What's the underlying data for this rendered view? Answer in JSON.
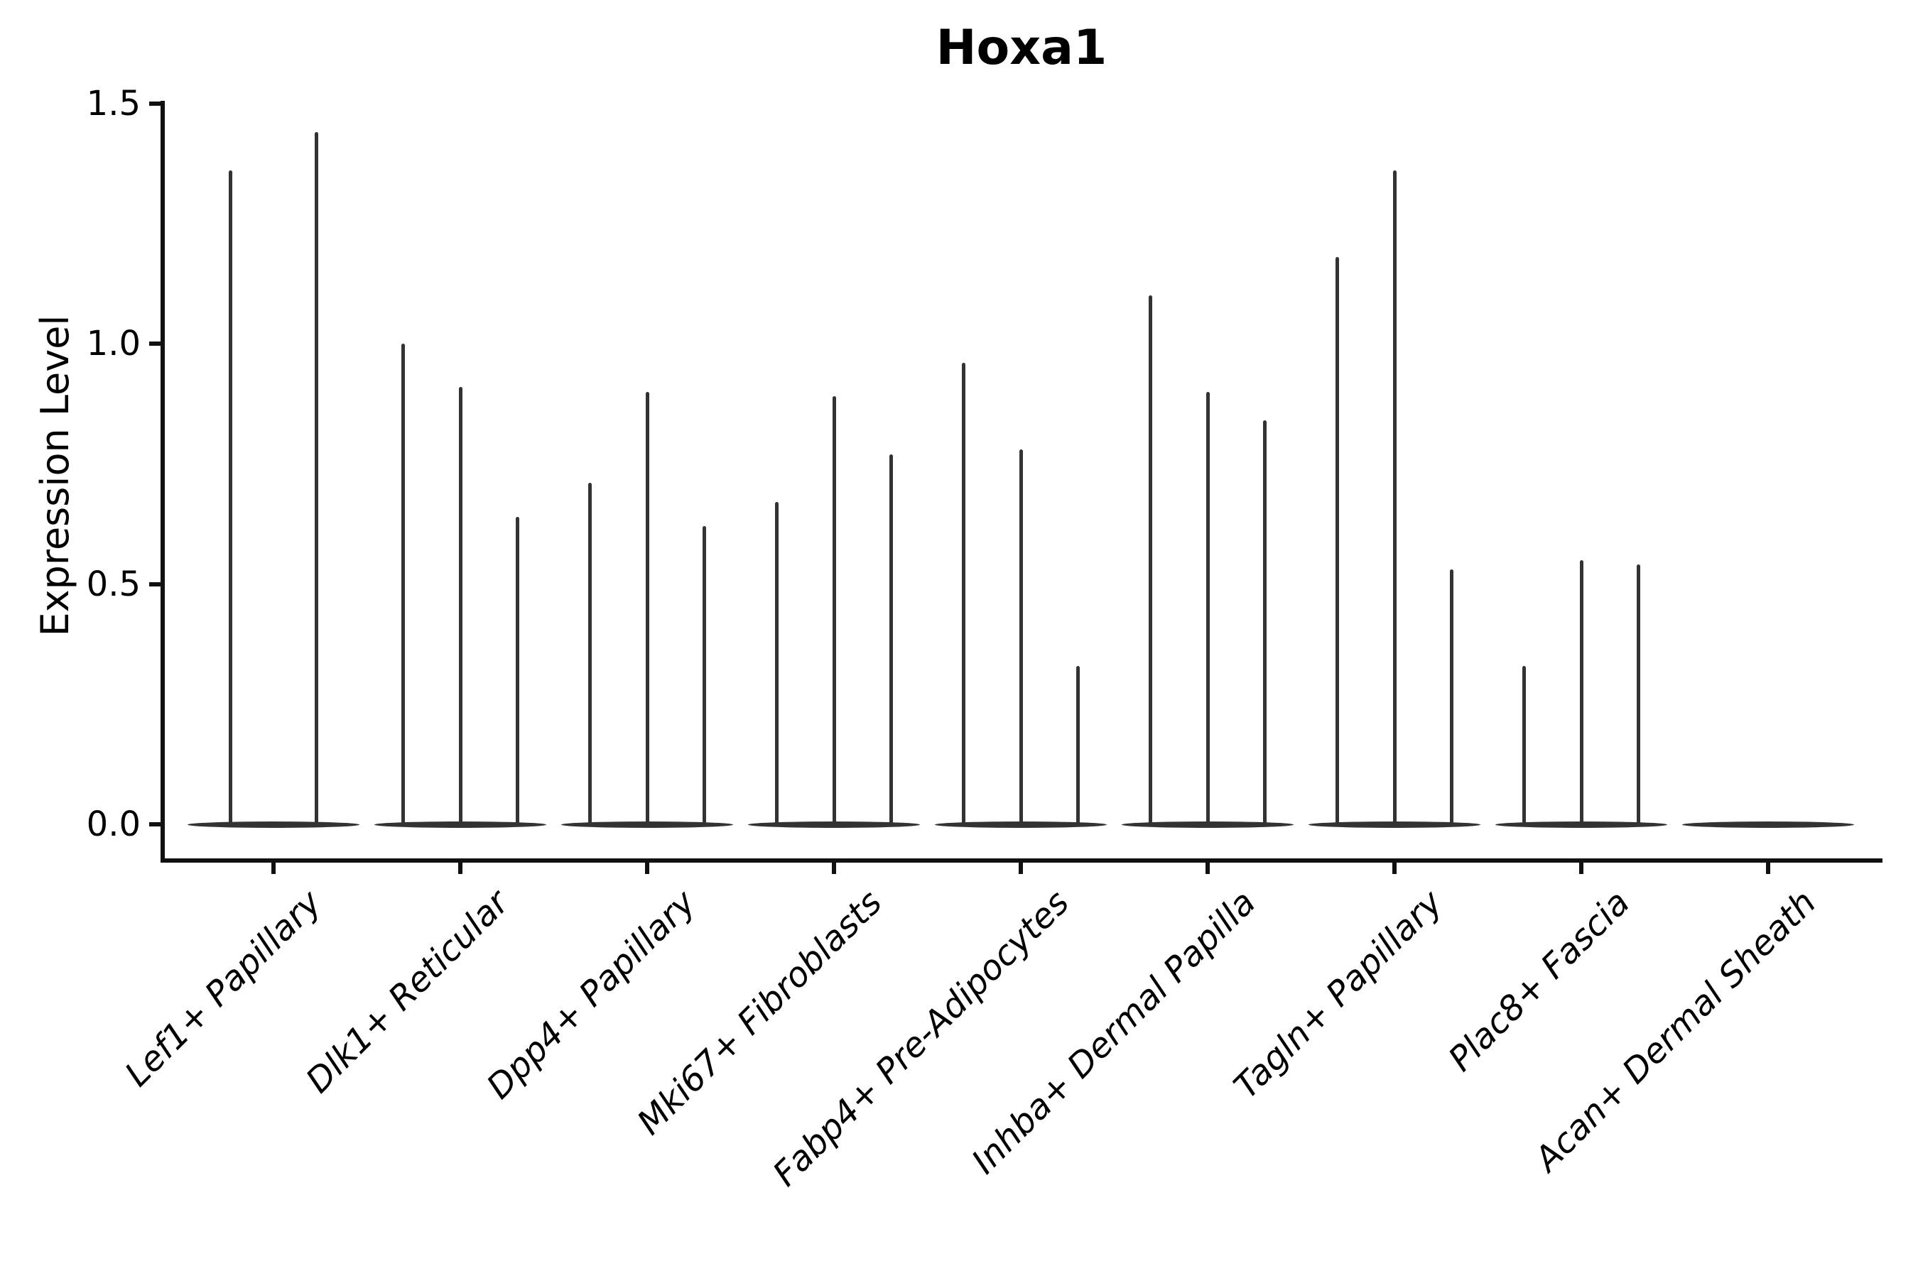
{
  "title": "Hoxa1",
  "y_axis": {
    "label": "Expression Level",
    "tick_labels": [
      "0.0",
      "0.5",
      "1.0",
      "1.5"
    ]
  },
  "chart_data": {
    "type": "violin",
    "title": "Hoxa1",
    "ylabel": "Expression Level",
    "xlabel": "",
    "ylim": [
      0,
      1.5
    ],
    "yticks": [
      0.0,
      0.5,
      1.0,
      1.5
    ],
    "grid": false,
    "legend_position": "none",
    "categories": [
      "Lef1+ Papillary",
      "Dlk1+ Reticular",
      "Dpp4+ Papillary",
      "Mki67+ Fibroblasts",
      "Fabp4+ Pre-Adipocytes",
      "Inhba+ Dermal Papilla",
      "Tagln+ Papillary",
      "Plac8+ Fascia",
      "Acan+ Dermal Sheath"
    ],
    "baseline_value": 0.0,
    "violin_peaks": [
      [
        1.36,
        1.44
      ],
      [
        1.0,
        0.91,
        0.64
      ],
      [
        0.71,
        0.9,
        0.62
      ],
      [
        0.67,
        0.89,
        0.77
      ],
      [
        0.96,
        0.78,
        0.33
      ],
      [
        1.1,
        0.9,
        0.84
      ],
      [
        1.18,
        1.36,
        0.53
      ],
      [
        0.33,
        0.55,
        0.54
      ],
      []
    ],
    "colors": {
      "violin": "#333333",
      "axis": "#111111",
      "text": "#000000",
      "background": "#ffffff"
    }
  }
}
